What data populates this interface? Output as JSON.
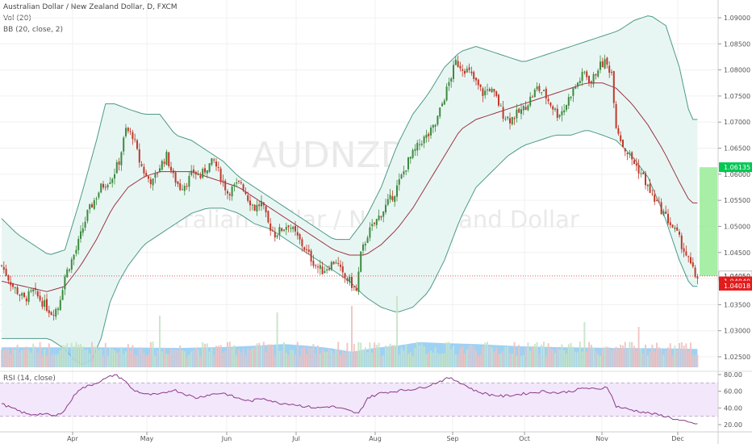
{
  "header": {
    "title": "Australian Dollar / New Zealand Dollar, D, FXCM",
    "vol_label": "Vol (20)",
    "bb_label": "BB (20, close, 2)",
    "rsi_label": "RSI (14, close)"
  },
  "watermark": {
    "symbol": "AUDNZD, D",
    "name": "Australian Dollar / New Zealand Dollar"
  },
  "colors": {
    "up": "#3c8a3f",
    "down": "#c0392b",
    "bb_fill": "#e8f6f3",
    "bb_band": "#4d9a88",
    "bb_basis": "#9a3545",
    "vol_avg": "#7dc3f0",
    "vol_up": "#c5e3c8",
    "vol_down": "#eec2c2",
    "rsi_line": "#8a3a8a",
    "rsi_band": "#f3e7fb",
    "proj": "#98ec98",
    "current": "#e21c1c"
  },
  "chart_data": {
    "type": "candlestick",
    "symbol": "AUDNZD",
    "timeframe": "D",
    "x_tick_labels": [
      "Apr",
      "May",
      "Jun",
      "Jul",
      "Aug",
      "Sep",
      "Oct",
      "Nov",
      "Dec"
    ],
    "y_tick_labels": [
      "1.09000",
      "1.08500",
      "1.08000",
      "1.07500",
      "1.07000",
      "1.06500",
      "1.06000",
      "1.05500",
      "1.05000",
      "1.04500",
      "1.04000",
      "1.03500",
      "1.03000",
      "1.02500"
    ],
    "ylim": [
      1.0205,
      1.0915
    ],
    "price_labels": [
      {
        "text": "1.06135",
        "value": 1.06135,
        "color": "#00c853"
      },
      {
        "text": "1.04050",
        "value": 1.0405,
        "color": "#ffffff"
      },
      {
        "text": "1.04040",
        "value": 1.0404,
        "color": "#e21c1c"
      },
      {
        "text": "1.04018",
        "value": 1.04018,
        "color": "#e21c1c"
      }
    ],
    "current_price": 1.0405,
    "projection": {
      "from": 1.0405,
      "to": 1.06135
    },
    "close_path": [
      [
        0,
        1.0425
      ],
      [
        5,
        1.0385
      ],
      [
        10,
        1.036
      ],
      [
        14,
        1.0375
      ],
      [
        18,
        1.0355
      ],
      [
        22,
        1.0335
      ],
      [
        25,
        1.0345
      ],
      [
        28,
        1.0405
      ],
      [
        33,
        1.0455
      ],
      [
        38,
        1.0525
      ],
      [
        44,
        1.0575
      ],
      [
        49,
        1.0595
      ],
      [
        52,
        1.0625
      ],
      [
        55,
        1.0685
      ],
      [
        58,
        1.0675
      ],
      [
        61,
        1.0625
      ],
      [
        64,
        1.0595
      ],
      [
        67,
        1.0585
      ],
      [
        70,
        1.0615
      ],
      [
        73,
        1.0635
      ],
      [
        76,
        1.0595
      ],
      [
        79,
        1.0575
      ],
      [
        82,
        1.0585
      ],
      [
        85,
        1.0605
      ],
      [
        88,
        1.0595
      ],
      [
        91,
        1.0615
      ],
      [
        94,
        1.0625
      ],
      [
        97,
        1.0595
      ],
      [
        100,
        1.0565
      ],
      [
        103,
        1.0575
      ],
      [
        106,
        1.0585
      ],
      [
        109,
        1.0555
      ],
      [
        112,
        1.0535
      ],
      [
        115,
        1.0545
      ],
      [
        118,
        1.0505
      ],
      [
        121,
        1.0485
      ],
      [
        124,
        1.0495
      ],
      [
        127,
        1.0505
      ],
      [
        130,
        1.0485
      ],
      [
        133,
        1.0465
      ],
      [
        136,
        1.0445
      ],
      [
        139,
        1.0425
      ],
      [
        142,
        1.0415
      ],
      [
        145,
        1.0425
      ],
      [
        148,
        1.0435
      ],
      [
        151,
        1.0405
      ],
      [
        154,
        1.0395
      ],
      [
        157,
        1.0375
      ],
      [
        159,
        1.0445
      ],
      [
        162,
        1.0485
      ],
      [
        165,
        1.0505
      ],
      [
        168,
        1.0525
      ],
      [
        171,
        1.0545
      ],
      [
        174,
        1.0565
      ],
      [
        177,
        1.0595
      ],
      [
        180,
        1.0625
      ],
      [
        183,
        1.0645
      ],
      [
        186,
        1.0665
      ],
      [
        189,
        1.0675
      ],
      [
        192,
        1.0695
      ],
      [
        195,
        1.0735
      ],
      [
        198,
        1.0775
      ],
      [
        201,
        1.0815
      ],
      [
        204,
        1.0805
      ],
      [
        207,
        1.0795
      ],
      [
        210,
        1.0775
      ],
      [
        213,
        1.0755
      ],
      [
        216,
        1.0765
      ],
      [
        219,
        1.0745
      ],
      [
        222,
        1.0715
      ],
      [
        225,
        1.0705
      ],
      [
        228,
        1.0715
      ],
      [
        231,
        1.0725
      ],
      [
        234,
        1.0745
      ],
      [
        237,
        1.0765
      ],
      [
        240,
        1.0755
      ],
      [
        243,
        1.0735
      ],
      [
        246,
        1.0715
      ],
      [
        249,
        1.0725
      ],
      [
        252,
        1.0755
      ],
      [
        255,
        1.0775
      ],
      [
        258,
        1.0795
      ],
      [
        261,
        1.0775
      ],
      [
        264,
        1.0805
      ],
      [
        267,
        1.0815
      ],
      [
        270,
        1.0795
      ],
      [
        272,
        1.0695
      ],
      [
        275,
        1.0655
      ],
      [
        278,
        1.0635
      ],
      [
        281,
        1.0615
      ],
      [
        284,
        1.0595
      ],
      [
        287,
        1.0565
      ],
      [
        290,
        1.0545
      ],
      [
        293,
        1.0525
      ],
      [
        296,
        1.0505
      ],
      [
        299,
        1.0485
      ],
      [
        302,
        1.0455
      ],
      [
        305,
        1.0425
      ],
      [
        307,
        1.0405
      ]
    ],
    "bollinger_upper": [
      [
        0,
        1.0515
      ],
      [
        7,
        1.0485
      ],
      [
        14,
        1.0465
      ],
      [
        21,
        1.0445
      ],
      [
        28,
        1.0455
      ],
      [
        35,
        1.0555
      ],
      [
        42,
        1.0665
      ],
      [
        46,
        1.0735
      ],
      [
        50,
        1.0735
      ],
      [
        56,
        1.0725
      ],
      [
        63,
        1.0715
      ],
      [
        70,
        1.0715
      ],
      [
        77,
        1.0675
      ],
      [
        84,
        1.0665
      ],
      [
        91,
        1.0645
      ],
      [
        98,
        1.0625
      ],
      [
        105,
        1.0595
      ],
      [
        112,
        1.0575
      ],
      [
        119,
        1.0555
      ],
      [
        126,
        1.0535
      ],
      [
        133,
        1.0515
      ],
      [
        140,
        1.0495
      ],
      [
        147,
        1.0475
      ],
      [
        154,
        1.0475
      ],
      [
        161,
        1.0515
      ],
      [
        168,
        1.0575
      ],
      [
        175,
        1.0655
      ],
      [
        182,
        1.0715
      ],
      [
        189,
        1.0755
      ],
      [
        196,
        1.0805
      ],
      [
        203,
        1.0835
      ],
      [
        210,
        1.0845
      ],
      [
        217,
        1.0835
      ],
      [
        224,
        1.0825
      ],
      [
        231,
        1.0815
      ],
      [
        238,
        1.0825
      ],
      [
        245,
        1.0835
      ],
      [
        252,
        1.0845
      ],
      [
        259,
        1.0855
      ],
      [
        266,
        1.0865
      ],
      [
        273,
        1.0875
      ],
      [
        280,
        1.0895
      ],
      [
        287,
        1.0905
      ],
      [
        294,
        1.0885
      ],
      [
        300,
        1.0805
      ],
      [
        305,
        1.0705
      ]
    ],
    "bollinger_basis": [
      [
        0,
        1.0395
      ],
      [
        10,
        1.0385
      ],
      [
        20,
        1.0375
      ],
      [
        28,
        1.0385
      ],
      [
        35,
        1.0425
      ],
      [
        42,
        1.0475
      ],
      [
        49,
        1.0535
      ],
      [
        56,
        1.0575
      ],
      [
        63,
        1.0595
      ],
      [
        70,
        1.0605
      ],
      [
        77,
        1.0605
      ],
      [
        84,
        1.0605
      ],
      [
        91,
        1.0595
      ],
      [
        98,
        1.0585
      ],
      [
        105,
        1.0575
      ],
      [
        112,
        1.0555
      ],
      [
        119,
        1.0535
      ],
      [
        126,
        1.0515
      ],
      [
        133,
        1.0495
      ],
      [
        140,
        1.0475
      ],
      [
        147,
        1.0455
      ],
      [
        154,
        1.0445
      ],
      [
        161,
        1.0445
      ],
      [
        168,
        1.0465
      ],
      [
        175,
        1.0495
      ],
      [
        182,
        1.0535
      ],
      [
        189,
        1.0585
      ],
      [
        196,
        1.0635
      ],
      [
        203,
        1.0685
      ],
      [
        210,
        1.0705
      ],
      [
        217,
        1.0715
      ],
      [
        224,
        1.0725
      ],
      [
        231,
        1.0735
      ],
      [
        238,
        1.0745
      ],
      [
        245,
        1.0755
      ],
      [
        252,
        1.0765
      ],
      [
        259,
        1.0775
      ],
      [
        266,
        1.0775
      ],
      [
        272,
        1.0765
      ],
      [
        279,
        1.0735
      ],
      [
        286,
        1.0695
      ],
      [
        293,
        1.0645
      ],
      [
        300,
        1.0585
      ],
      [
        305,
        1.0545
      ]
    ],
    "bollinger_lower": [
      [
        0,
        1.0285
      ],
      [
        7,
        1.0285
      ],
      [
        14,
        1.0285
      ],
      [
        21,
        1.0285
      ],
      [
        28,
        1.0265
      ],
      [
        32,
        1.0245
      ],
      [
        36,
        1.0235
      ],
      [
        40,
        1.0245
      ],
      [
        44,
        1.0285
      ],
      [
        48,
        1.0355
      ],
      [
        52,
        1.0395
      ],
      [
        56,
        1.0425
      ],
      [
        63,
        1.0465
      ],
      [
        70,
        1.0485
      ],
      [
        77,
        1.0505
      ],
      [
        84,
        1.0525
      ],
      [
        91,
        1.0535
      ],
      [
        98,
        1.0535
      ],
      [
        105,
        1.0525
      ],
      [
        112,
        1.0505
      ],
      [
        119,
        1.0495
      ],
      [
        126,
        1.0475
      ],
      [
        133,
        1.0455
      ],
      [
        140,
        1.0435
      ],
      [
        147,
        1.0415
      ],
      [
        154,
        1.0395
      ],
      [
        161,
        1.0365
      ],
      [
        168,
        1.0345
      ],
      [
        175,
        1.0335
      ],
      [
        182,
        1.0345
      ],
      [
        189,
        1.0375
      ],
      [
        196,
        1.0435
      ],
      [
        203,
        1.0515
      ],
      [
        210,
        1.0575
      ],
      [
        217,
        1.0605
      ],
      [
        224,
        1.0635
      ],
      [
        231,
        1.0655
      ],
      [
        238,
        1.0665
      ],
      [
        245,
        1.0675
      ],
      [
        252,
        1.0675
      ],
      [
        259,
        1.0685
      ],
      [
        266,
        1.0675
      ],
      [
        272,
        1.0665
      ],
      [
        279,
        1.0635
      ],
      [
        286,
        1.0595
      ],
      [
        293,
        1.0525
      ],
      [
        300,
        1.0435
      ],
      [
        305,
        1.0385
      ]
    ],
    "volume_avg": [
      [
        0,
        0.62
      ],
      [
        20,
        0.62
      ],
      [
        40,
        0.62
      ],
      [
        60,
        0.61
      ],
      [
        80,
        0.6
      ],
      [
        100,
        0.63
      ],
      [
        115,
        0.68
      ],
      [
        125,
        0.72
      ],
      [
        135,
        0.67
      ],
      [
        145,
        0.6
      ],
      [
        155,
        0.48
      ],
      [
        165,
        0.6
      ],
      [
        175,
        0.67
      ],
      [
        185,
        0.78
      ],
      [
        195,
        0.75
      ],
      [
        210,
        0.72
      ],
      [
        230,
        0.65
      ],
      [
        250,
        0.62
      ],
      [
        270,
        0.6
      ],
      [
        290,
        0.59
      ],
      [
        307,
        0.57
      ]
    ],
    "volume_spikes": [
      [
        70,
        1.6
      ],
      [
        122,
        1.7
      ],
      [
        155,
        1.9
      ],
      [
        175,
        2.2
      ],
      [
        258,
        1.4
      ],
      [
        282,
        1.25
      ]
    ],
    "rsi": {
      "ylim": [
        15,
        85
      ],
      "y_tick_labels": [
        "80.00",
        "60.00",
        "40.00",
        "20.00"
      ],
      "overbought": 70,
      "oversold": 30,
      "points": [
        [
          0,
          45
        ],
        [
          6,
          38
        ],
        [
          12,
          32
        ],
        [
          18,
          33
        ],
        [
          24,
          30
        ],
        [
          28,
          38
        ],
        [
          34,
          62
        ],
        [
          40,
          68
        ],
        [
          46,
          75
        ],
        [
          50,
          80
        ],
        [
          54,
          74
        ],
        [
          58,
          62
        ],
        [
          64,
          56
        ],
        [
          70,
          56
        ],
        [
          76,
          62
        ],
        [
          80,
          58
        ],
        [
          86,
          52
        ],
        [
          92,
          56
        ],
        [
          98,
          58
        ],
        [
          104,
          52
        ],
        [
          110,
          48
        ],
        [
          116,
          52
        ],
        [
          122,
          46
        ],
        [
          128,
          45
        ],
        [
          134,
          42
        ],
        [
          140,
          40
        ],
        [
          146,
          42
        ],
        [
          152,
          38
        ],
        [
          158,
          33
        ],
        [
          162,
          52
        ],
        [
          168,
          58
        ],
        [
          174,
          60
        ],
        [
          180,
          62
        ],
        [
          186,
          64
        ],
        [
          190,
          68
        ],
        [
          194,
          72
        ],
        [
          198,
          76
        ],
        [
          202,
          72
        ],
        [
          206,
          66
        ],
        [
          210,
          60
        ],
        [
          216,
          56
        ],
        [
          222,
          54
        ],
        [
          228,
          56
        ],
        [
          234,
          58
        ],
        [
          240,
          60
        ],
        [
          246,
          58
        ],
        [
          252,
          60
        ],
        [
          258,
          64
        ],
        [
          264,
          62
        ],
        [
          268,
          66
        ],
        [
          272,
          42
        ],
        [
          278,
          38
        ],
        [
          286,
          34
        ],
        [
          294,
          30
        ],
        [
          300,
          25
        ],
        [
          305,
          22
        ],
        [
          308,
          21
        ]
      ]
    }
  }
}
